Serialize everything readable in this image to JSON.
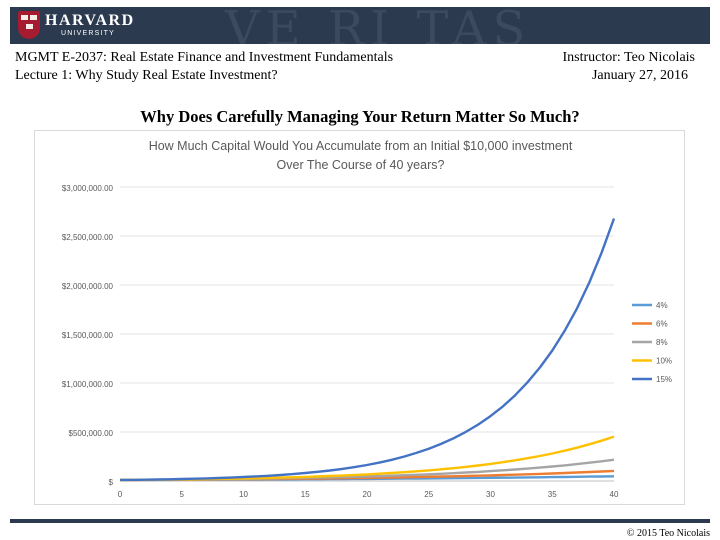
{
  "header": {
    "logo_top": "HARVARD",
    "logo_bottom": "UNIVERSITY",
    "banner_mark": "VE RI TAS",
    "course": "MGMT E-2037: Real Estate Finance and Investment Fundamentals",
    "lecture": "Lecture 1: Why Study Real Estate Investment?",
    "instructor": "Instructor: Teo Nicolais",
    "date": "January 27, 2016"
  },
  "slide": {
    "title": "Why Does Carefully Managing Your Return Matter So Much?"
  },
  "footer": {
    "copyright": "© 2015 Teo Nicolais"
  },
  "colors": {
    "banner": "#2b3a4e",
    "crest": "#a51c30"
  },
  "chart_data": {
    "type": "line",
    "title_lines": [
      "How Much Capital Would You Accumulate from an Initial $10,000 investment",
      "Over The Course of 40 years?"
    ],
    "xlabel": "",
    "ylabel": "",
    "x_ticks": [
      "0",
      "5",
      "10",
      "15",
      "20",
      "25",
      "30",
      "35",
      "40"
    ],
    "y_ticks": [
      "$",
      "$500,000.00",
      "$1,000,000.00",
      "$1,500,000.00",
      "$2,000,000.00",
      "$2,500,000.00",
      "$3,000,000.00"
    ],
    "xlim": [
      0,
      40
    ],
    "ylim": [
      0,
      3000000
    ],
    "grid": true,
    "legend_position": "right",
    "initial_investment": 10000,
    "series": [
      {
        "name": "4%",
        "rate": 0.04,
        "color": "#5b9bd5",
        "end_value": 48010
      },
      {
        "name": "6%",
        "rate": 0.06,
        "color": "#ed7d31",
        "end_value": 102857
      },
      {
        "name": "8%",
        "rate": 0.08,
        "color": "#a5a5a5",
        "end_value": 217245
      },
      {
        "name": "10%",
        "rate": 0.1,
        "color": "#ffc000",
        "end_value": 452593
      },
      {
        "name": "15%",
        "rate": 0.15,
        "color": "#4472c4",
        "end_value": 2678635
      }
    ]
  }
}
